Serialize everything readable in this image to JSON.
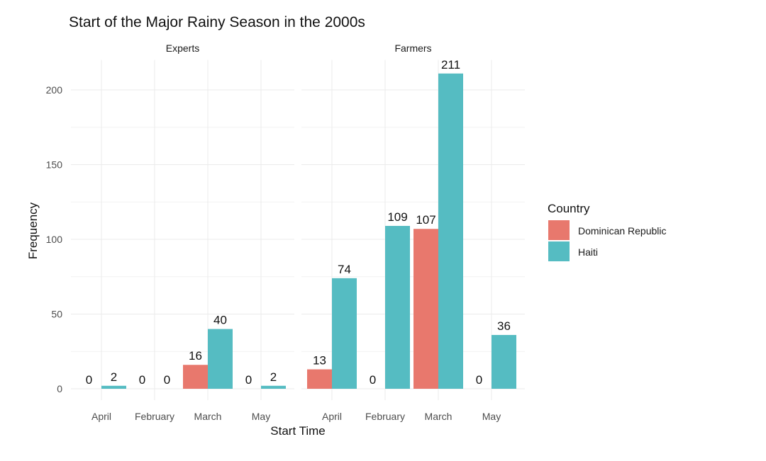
{
  "chart_data": {
    "type": "bar",
    "title": "Start of the Major Rainy Season in the 2000s",
    "xlabel": "Start Time",
    "ylabel": "Frequency",
    "ylim": [
      0,
      220
    ],
    "yticks": [
      0,
      50,
      100,
      150,
      200
    ],
    "grid": true,
    "categories": [
      "April",
      "February",
      "March",
      "May"
    ],
    "legend": {
      "title": "Country",
      "placement": "right"
    },
    "colors": {
      "Dominican Republic": "#E8786D",
      "Haiti": "#55BCC2"
    },
    "panels": [
      {
        "name": "Experts",
        "series": [
          {
            "name": "Dominican Republic",
            "values": [
              0,
              0,
              16,
              0
            ]
          },
          {
            "name": "Haiti",
            "values": [
              2,
              0,
              40,
              2
            ]
          }
        ]
      },
      {
        "name": "Farmers",
        "series": [
          {
            "name": "Dominican Republic",
            "values": [
              13,
              0,
              107,
              0
            ]
          },
          {
            "name": "Haiti",
            "values": [
              74,
              109,
              211,
              36
            ]
          }
        ]
      }
    ]
  }
}
